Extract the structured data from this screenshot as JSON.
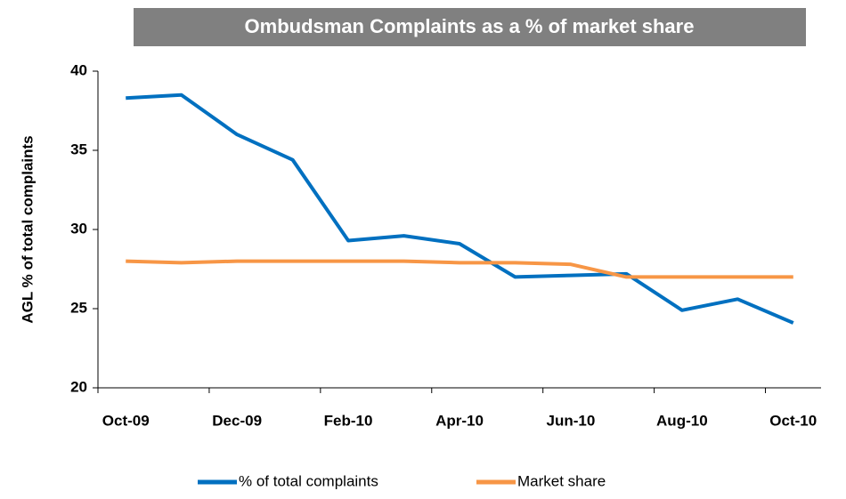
{
  "chart_data": {
    "type": "line",
    "title": "Ombudsman Complaints as a % of market share",
    "y_label": "AGL % of total complaints",
    "categories": [
      "Oct-09",
      null,
      "Dec-09",
      null,
      "Feb-10",
      null,
      "Apr-10",
      null,
      "Jun-10",
      null,
      "Aug-10",
      null,
      "Oct-10"
    ],
    "series": [
      {
        "name": "% of total complaints",
        "color": "#0070c0",
        "values": [
          38.3,
          38.5,
          36.0,
          34.4,
          29.3,
          29.6,
          29.1,
          27.0,
          27.1,
          27.2,
          24.9,
          25.6,
          24.1
        ]
      },
      {
        "name": "Market share",
        "color": "#f79646",
        "values": [
          28.0,
          27.9,
          28.0,
          28.0,
          28.0,
          28.0,
          27.9,
          27.9,
          27.8,
          27.0,
          27.0,
          27.0,
          27.0
        ]
      }
    ],
    "ylim": [
      20,
      40
    ],
    "yticks": [
      20,
      25,
      30,
      35,
      40
    ],
    "grid": false,
    "legend": "bottom"
  }
}
